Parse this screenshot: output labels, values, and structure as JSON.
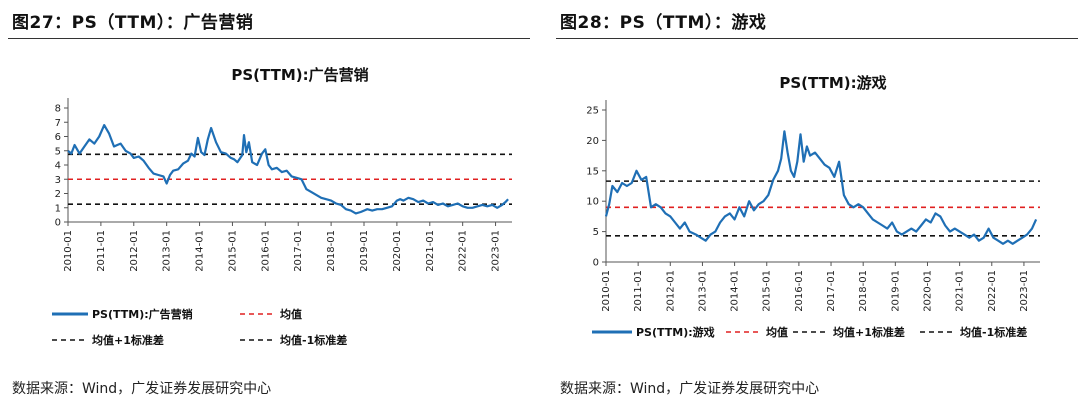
{
  "figures": [
    {
      "figure_label": "图27：PS（TTM）：广告营销",
      "source": "数据来源：Wind，广发证券发展研究中心"
    },
    {
      "figure_label": "图28：PS（TTM）：游戏",
      "source": "数据来源：Wind，广发证券发展研究中心"
    }
  ],
  "chart_data": [
    {
      "type": "line",
      "title": "PS(TTM):广告营销",
      "x_tick_labels": [
        "2010-01",
        "2011-01",
        "2012-01",
        "2013-01",
        "2014-01",
        "2015-01",
        "2016-01",
        "2017-01",
        "2018-01",
        "2019-01",
        "2020-01",
        "2021-01",
        "2022-01",
        "2023-01"
      ],
      "x_range": [
        2010.0,
        2023.5
      ],
      "ylim": [
        0,
        8
      ],
      "y_ticks": [
        0,
        1,
        2,
        3,
        4,
        5,
        6,
        7,
        8
      ],
      "grid": false,
      "legend_position": "bottom",
      "colors": {
        "series": "#1f6fb5",
        "mean": "#e02020",
        "band": "#111111"
      },
      "series": [
        {
          "name": "PS(TTM):广告营销",
          "x": [
            2010.0,
            2010.1,
            2010.2,
            2010.35,
            2010.5,
            2010.65,
            2010.8,
            2010.95,
            2011.1,
            2011.25,
            2011.4,
            2011.5,
            2011.6,
            2011.75,
            2011.9,
            2012.0,
            2012.15,
            2012.3,
            2012.45,
            2012.6,
            2012.75,
            2012.9,
            2013.0,
            2013.1,
            2013.2,
            2013.35,
            2013.5,
            2013.65,
            2013.75,
            2013.85,
            2013.95,
            2014.05,
            2014.15,
            2014.25,
            2014.35,
            2014.5,
            2014.65,
            2014.8,
            2014.95,
            2015.05,
            2015.15,
            2015.3,
            2015.35,
            2015.42,
            2015.5,
            2015.6,
            2015.75,
            2015.9,
            2016.0,
            2016.1,
            2016.2,
            2016.35,
            2016.5,
            2016.65,
            2016.8,
            2016.95,
            2017.1,
            2017.25,
            2017.4,
            2017.55,
            2017.7,
            2017.85,
            2018.0,
            2018.15,
            2018.3,
            2018.45,
            2018.6,
            2018.75,
            2018.9,
            2019.0,
            2019.1,
            2019.25,
            2019.4,
            2019.55,
            2019.7,
            2019.85,
            2020.0,
            2020.1,
            2020.2,
            2020.35,
            2020.5,
            2020.65,
            2020.8,
            2020.95,
            2021.1,
            2021.25,
            2021.4,
            2021.55,
            2021.7,
            2021.85,
            2022.0,
            2022.15,
            2022.3,
            2022.45,
            2022.6,
            2022.75,
            2022.9,
            2023.05,
            2023.2,
            2023.3,
            2023.38
          ],
          "y": [
            5.0,
            4.8,
            5.4,
            4.8,
            5.3,
            5.8,
            5.5,
            6.0,
            6.8,
            6.2,
            5.3,
            5.4,
            5.5,
            5.0,
            4.8,
            4.5,
            4.6,
            4.3,
            3.8,
            3.4,
            3.3,
            3.2,
            2.7,
            3.3,
            3.6,
            3.7,
            4.1,
            4.3,
            4.8,
            4.6,
            5.9,
            4.9,
            4.7,
            5.8,
            6.6,
            5.6,
            4.9,
            4.8,
            4.5,
            4.4,
            4.2,
            4.7,
            6.1,
            4.9,
            5.6,
            4.2,
            4.0,
            4.8,
            5.1,
            4.0,
            3.7,
            3.8,
            3.5,
            3.6,
            3.2,
            3.1,
            3.0,
            2.3,
            2.1,
            1.9,
            1.7,
            1.6,
            1.5,
            1.3,
            1.2,
            0.9,
            0.8,
            0.6,
            0.7,
            0.8,
            0.9,
            0.8,
            0.9,
            0.9,
            1.0,
            1.1,
            1.5,
            1.6,
            1.5,
            1.7,
            1.6,
            1.4,
            1.5,
            1.3,
            1.4,
            1.2,
            1.3,
            1.1,
            1.2,
            1.3,
            1.1,
            1.0,
            1.0,
            1.1,
            1.2,
            1.1,
            1.2,
            1.0,
            1.2,
            1.4,
            1.6
          ]
        },
        {
          "name": "均值",
          "y": 3.0
        },
        {
          "name": "均值+1标准差",
          "y": 4.75
        },
        {
          "name": "均值-1标准差",
          "y": 1.25
        }
      ]
    },
    {
      "type": "line",
      "title": "PS(TTM):游戏",
      "x_tick_labels": [
        "2010-01",
        "2011-01",
        "2012-01",
        "2013-01",
        "2014-01",
        "2015-01",
        "2016-01",
        "2017-01",
        "2018-01",
        "2019-01",
        "2020-01",
        "2021-01",
        "2022-01",
        "2023-01"
      ],
      "x_range": [
        2010.0,
        2023.5
      ],
      "ylim": [
        0,
        25
      ],
      "y_ticks": [
        0,
        5,
        10,
        15,
        20,
        25
      ],
      "grid": false,
      "legend_position": "bottom",
      "colors": {
        "series": "#1f6fb5",
        "mean": "#e02020",
        "band": "#111111"
      },
      "series": [
        {
          "name": "PS(TTM):游戏",
          "x": [
            2010.0,
            2010.1,
            2010.2,
            2010.35,
            2010.5,
            2010.65,
            2010.8,
            2010.95,
            2011.1,
            2011.25,
            2011.4,
            2011.55,
            2011.7,
            2011.85,
            2012.0,
            2012.15,
            2012.3,
            2012.45,
            2012.6,
            2012.8,
            2012.95,
            2013.1,
            2013.25,
            2013.4,
            2013.55,
            2013.7,
            2013.85,
            2014.0,
            2014.15,
            2014.3,
            2014.45,
            2014.6,
            2014.75,
            2014.9,
            2015.05,
            2015.2,
            2015.35,
            2015.45,
            2015.55,
            2015.65,
            2015.75,
            2015.85,
            2015.95,
            2016.05,
            2016.15,
            2016.25,
            2016.35,
            2016.5,
            2016.65,
            2016.8,
            2016.95,
            2017.1,
            2017.25,
            2017.4,
            2017.55,
            2017.7,
            2017.85,
            2018.0,
            2018.15,
            2018.3,
            2018.45,
            2018.6,
            2018.75,
            2018.9,
            2019.05,
            2019.2,
            2019.35,
            2019.5,
            2019.65,
            2019.8,
            2019.95,
            2020.1,
            2020.25,
            2020.4,
            2020.55,
            2020.7,
            2020.85,
            2021.0,
            2021.15,
            2021.3,
            2021.45,
            2021.6,
            2021.75,
            2021.9,
            2022.05,
            2022.2,
            2022.35,
            2022.5,
            2022.65,
            2022.8,
            2022.95,
            2023.1,
            2023.25,
            2023.38
          ],
          "y": [
            7.5,
            9.5,
            12.5,
            11.5,
            13.0,
            12.5,
            13.0,
            15.0,
            13.5,
            14.0,
            9.0,
            9.5,
            9.0,
            8.0,
            7.5,
            6.5,
            5.5,
            6.5,
            5.0,
            4.5,
            4.0,
            3.5,
            4.5,
            5.0,
            6.5,
            7.5,
            8.0,
            7.0,
            9.0,
            7.5,
            10.0,
            8.5,
            9.5,
            10.0,
            11.0,
            13.5,
            15.0,
            17.0,
            21.5,
            18.0,
            15.0,
            14.0,
            16.5,
            21.0,
            16.5,
            19.0,
            17.5,
            18.0,
            17.0,
            16.0,
            15.5,
            14.0,
            16.5,
            11.0,
            9.5,
            9.0,
            9.5,
            9.0,
            8.0,
            7.0,
            6.5,
            6.0,
            5.5,
            6.5,
            5.0,
            4.5,
            5.0,
            5.5,
            5.0,
            6.0,
            7.0,
            6.5,
            8.0,
            7.5,
            6.0,
            5.0,
            5.5,
            5.0,
            4.5,
            4.0,
            4.5,
            3.5,
            4.0,
            5.5,
            4.0,
            3.5,
            3.0,
            3.5,
            3.0,
            3.5,
            4.0,
            4.5,
            5.5,
            7.0
          ]
        },
        {
          "name": "均值",
          "y": 9.0
        },
        {
          "name": "均值+1标准差",
          "y": 13.3
        },
        {
          "name": "均值-1标准差",
          "y": 4.3
        }
      ]
    }
  ]
}
